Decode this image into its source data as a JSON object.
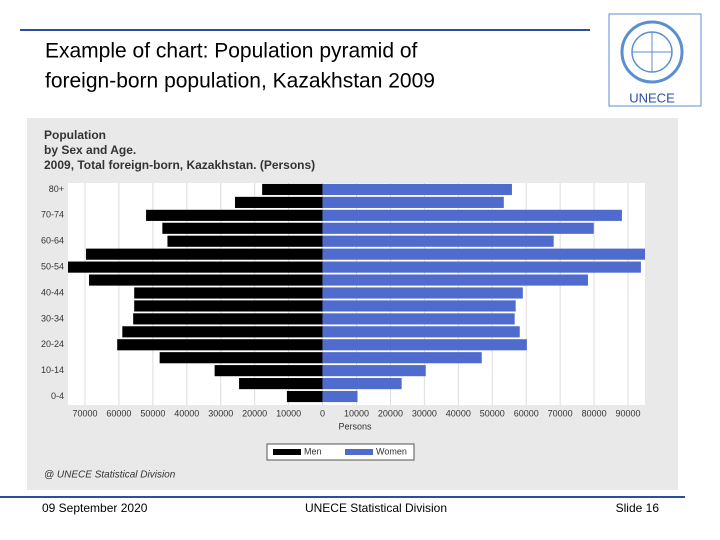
{
  "slide": {
    "title_lines": [
      "Example of chart: Population pyramid of",
      "foreign-born population, Kazakhstan 2009"
    ],
    "logo_text": "UNECE",
    "source": "@ UNECE Statistical Division",
    "footer": {
      "date": "09 September 2020",
      "org": "UNECE Statistical Division",
      "slide": "Slide 16"
    }
  },
  "chart_data": {
    "type": "pyramid",
    "title_lines": [
      "Population",
      "by Sex and Age.",
      "2009, Total foreign-born, Kazakhstan. (Persons)"
    ],
    "xlabel": "Persons",
    "categories": [
      "0-4",
      null,
      "10-14",
      null,
      "20-24",
      null,
      "30-34",
      null,
      "40-44",
      null,
      "50-54",
      null,
      "60-64",
      null,
      "70-74",
      null,
      "80+"
    ],
    "series": [
      {
        "name": "Men",
        "color": "#000000",
        "side": "left",
        "values": [
          10500,
          24600,
          31800,
          48000,
          60500,
          59000,
          55800,
          55500,
          55500,
          68800,
          75000,
          69700,
          45700,
          47200,
          52000,
          25800,
          17800
        ]
      },
      {
        "name": "Women",
        "color": "#4f6bcd",
        "side": "right",
        "values": [
          10300,
          23300,
          30400,
          46900,
          60200,
          58100,
          56600,
          56900,
          59000,
          78200,
          93800,
          95000,
          68100,
          79900,
          88200,
          53400,
          55800
        ]
      }
    ],
    "xlim": [
      -75000,
      95000
    ],
    "xticks": [
      {
        "value": -70000,
        "label": "70000"
      },
      {
        "value": -60000,
        "label": "60000"
      },
      {
        "value": -50000,
        "label": "50000"
      },
      {
        "value": -40000,
        "label": "40000"
      },
      {
        "value": -30000,
        "label": "30000"
      },
      {
        "value": -20000,
        "label": "20000"
      },
      {
        "value": -10000,
        "label": "10000"
      },
      0,
      10000,
      20000,
      30000,
      40000,
      50000,
      60000,
      70000,
      80000,
      90000
    ],
    "grid": true
  }
}
